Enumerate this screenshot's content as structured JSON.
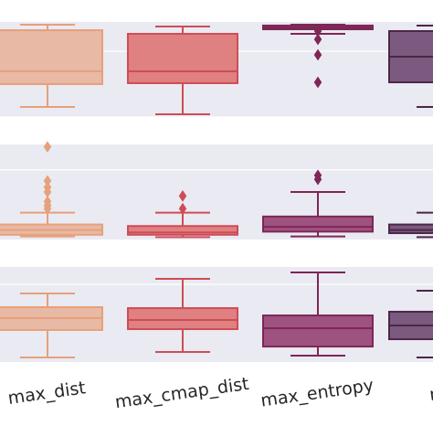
{
  "chart_data": {
    "type": "box",
    "title": "",
    "categories": [
      "max_dist",
      "max_cmap_dist",
      "max_entropy",
      "ma"
    ],
    "colors": {
      "face": [
        "#e8b9a4",
        "#df8081",
        "#9e5280",
        "#7a5a7e"
      ],
      "edge": [
        "#e6a07c",
        "#cf4c57",
        "#7e2656",
        "#4e2548"
      ],
      "panel_bg": "#eaeaf2",
      "grid": "#ffffff"
    },
    "panels": [
      {
        "name": "top",
        "ylim": [
          0,
          100
        ],
        "gridlines": [
          0,
          69.2
        ],
        "boxes": [
          {
            "whislo": 10.6,
            "q1": 34.6,
            "med": 48.1,
            "q3": 91.3,
            "whishi": 97.1,
            "fliers": []
          },
          {
            "whislo": 2.9,
            "q1": 35.6,
            "med": 48.1,
            "q3": 87.5,
            "whishi": 95.2,
            "fliers": []
          },
          {
            "whislo": 87.5,
            "q1": 92.3,
            "med": 94.2,
            "q3": 96.2,
            "whishi": 97.1,
            "fliers": [
              90.4,
              81.7,
              65.4,
              36.5
            ]
          },
          {
            "whislo": 10.6,
            "q1": 36.5,
            "med": 63.5,
            "q3": 90.4,
            "whishi": 96.2,
            "fliers": []
          }
        ]
      },
      {
        "name": "middle",
        "ylim": [
          0,
          100
        ],
        "gridlines": [
          73.3
        ],
        "boxes": [
          {
            "whislo": 3.3,
            "q1": 5.0,
            "med": 10.0,
            "q3": 15.8,
            "whishi": 28.3,
            "fliers": [
              32.5,
              35.8,
              40.0,
              50.0,
              55.0,
              61.7,
              97.5
            ]
          },
          {
            "whislo": 2.5,
            "q1": 5.0,
            "med": 7.5,
            "q3": 14.2,
            "whishi": 28.3,
            "fliers": [
              32.5,
              45.8
            ]
          },
          {
            "whislo": 3.3,
            "q1": 8.3,
            "med": 13.3,
            "q3": 24.2,
            "whishi": 50.0,
            "fliers": [
              63.3,
              67.5
            ]
          },
          {
            "whislo": 2.5,
            "q1": 6.7,
            "med": 10.0,
            "q3": 15.8,
            "whishi": 28.3,
            "fliers": []
          }
        ]
      },
      {
        "name": "bottom",
        "ylim": [
          0,
          100
        ],
        "gridlines": [
          81.7
        ],
        "boxes": [
          {
            "whislo": 4.8,
            "q1": 33.7,
            "med": 46.2,
            "q3": 57.7,
            "whishi": 72.1,
            "fliers": []
          },
          {
            "whislo": 10.6,
            "q1": 34.6,
            "med": 44.2,
            "q3": 56.7,
            "whishi": 87.5,
            "fliers": []
          },
          {
            "whislo": 6.7,
            "q1": 16.3,
            "med": 35.6,
            "q3": 49.0,
            "whishi": 94.2,
            "fliers": []
          },
          {
            "whislo": 4.8,
            "q1": 24.0,
            "med": 38.5,
            "q3": 52.9,
            "whishi": 75.0,
            "fliers": []
          }
        ]
      }
    ]
  }
}
